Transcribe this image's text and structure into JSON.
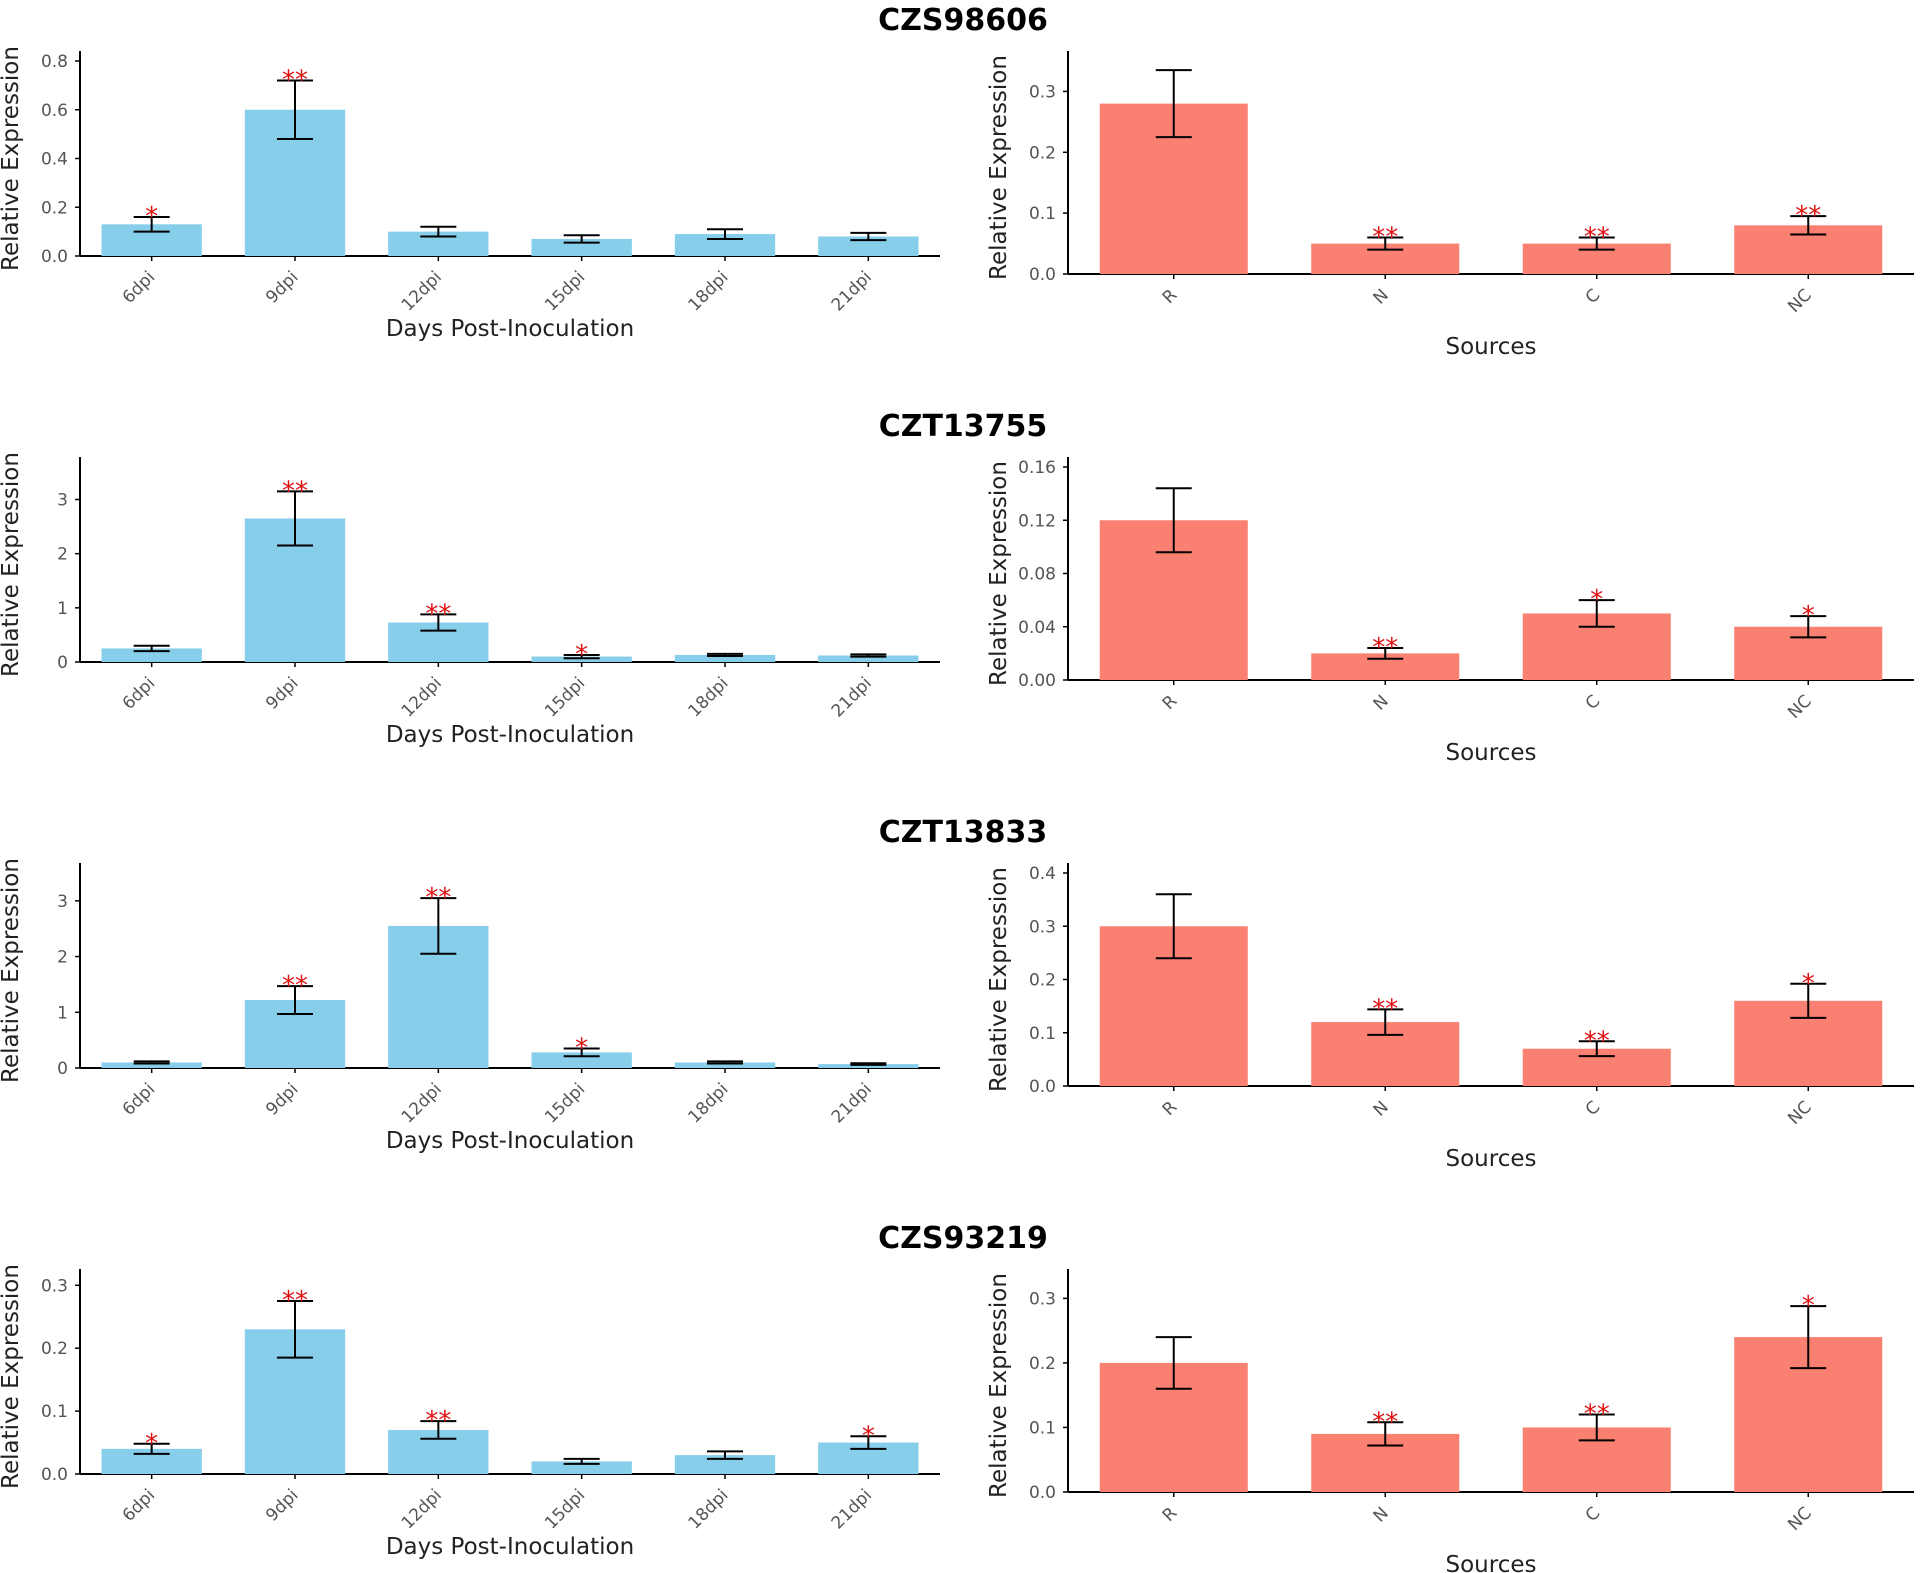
{
  "colors": {
    "time_bar": "#87ceeb",
    "source_bar": "#fa8072",
    "significance": "#e01010",
    "axis": "#000000"
  },
  "chart_data": [
    {
      "gene": "CZS98606",
      "time_course": {
        "type": "bar",
        "categories": [
          "6dpi",
          "9dpi",
          "12dpi",
          "15dpi",
          "18dpi",
          "21dpi"
        ],
        "values": [
          0.13,
          0.6,
          0.1,
          0.07,
          0.09,
          0.08
        ],
        "errors": [
          0.03,
          0.12,
          0.02,
          0.015,
          0.02,
          0.015
        ],
        "significance": [
          "*",
          "**",
          "",
          "",
          "",
          ""
        ],
        "ylim": [
          0,
          0.8
        ],
        "yticks": [
          "0.0",
          "0.2",
          "0.4",
          "0.6",
          "0.8"
        ],
        "xlabel": "Days Post-Inoculation",
        "ylabel": "Relative Expression"
      },
      "sources": {
        "type": "bar",
        "categories": [
          "R",
          "N",
          "C",
          "NC"
        ],
        "values": [
          0.28,
          0.05,
          0.05,
          0.08
        ],
        "errors": [
          0.055,
          0.01,
          0.01,
          0.015
        ],
        "significance": [
          "",
          "**",
          "**",
          "**"
        ],
        "ylim": [
          0,
          0.35
        ],
        "yticks": [
          "0.0",
          "0.1",
          "0.2",
          "0.3"
        ],
        "xlabel": "Sources",
        "ylabel": "Relative Expression"
      }
    },
    {
      "gene": "CZT13755",
      "time_course": {
        "type": "bar",
        "categories": [
          "6dpi",
          "9dpi",
          "12dpi",
          "15dpi",
          "18dpi",
          "21dpi"
        ],
        "values": [
          0.25,
          2.65,
          0.73,
          0.1,
          0.13,
          0.12
        ],
        "errors": [
          0.05,
          0.5,
          0.15,
          0.03,
          0.02,
          0.02
        ],
        "significance": [
          "",
          "**",
          "**",
          "*",
          "",
          ""
        ],
        "ylim": [
          0,
          3.6
        ],
        "yticks": [
          "0",
          "1",
          "2",
          "3"
        ],
        "xlabel": "Days Post-Inoculation",
        "ylabel": "Relative Expression"
      },
      "sources": {
        "type": "bar",
        "categories": [
          "R",
          "N",
          "C",
          "NC"
        ],
        "values": [
          0.12,
          0.02,
          0.05,
          0.04
        ],
        "errors": [
          0.024,
          0.004,
          0.01,
          0.008
        ],
        "significance": [
          "",
          "**",
          "*",
          "*"
        ],
        "ylim": [
          0,
          0.16
        ],
        "yticks": [
          "0.00",
          "0.04",
          "0.08",
          "0.12",
          "0.16"
        ],
        "xlabel": "Sources",
        "ylabel": "Relative Expression"
      }
    },
    {
      "gene": "CZT13833",
      "time_course": {
        "type": "bar",
        "categories": [
          "6dpi",
          "9dpi",
          "12dpi",
          "15dpi",
          "18dpi",
          "21dpi"
        ],
        "values": [
          0.1,
          1.22,
          2.55,
          0.28,
          0.1,
          0.07
        ],
        "errors": [
          0.02,
          0.25,
          0.5,
          0.07,
          0.02,
          0.015
        ],
        "significance": [
          "",
          "**",
          "**",
          "*",
          "",
          ""
        ],
        "ylim": [
          0,
          3.5
        ],
        "yticks": [
          "0",
          "1",
          "2",
          "3"
        ],
        "xlabel": "Days Post-Inoculation",
        "ylabel": "Relative Expression"
      },
      "sources": {
        "type": "bar",
        "categories": [
          "R",
          "N",
          "C",
          "NC"
        ],
        "values": [
          0.3,
          0.12,
          0.07,
          0.16
        ],
        "errors": [
          0.06,
          0.024,
          0.014,
          0.032
        ],
        "significance": [
          "",
          "**",
          "**",
          "*"
        ],
        "ylim": [
          0,
          0.4
        ],
        "yticks": [
          "0.0",
          "0.1",
          "0.2",
          "0.3",
          "0.4"
        ],
        "xlabel": "Sources",
        "ylabel": "Relative Expression"
      }
    },
    {
      "gene": "CZS93219",
      "time_course": {
        "type": "bar",
        "categories": [
          "6dpi",
          "9dpi",
          "12dpi",
          "15dpi",
          "18dpi",
          "21dpi"
        ],
        "values": [
          0.04,
          0.23,
          0.07,
          0.02,
          0.03,
          0.05
        ],
        "errors": [
          0.008,
          0.045,
          0.014,
          0.004,
          0.006,
          0.01
        ],
        "significance": [
          "*",
          "**",
          "**",
          "",
          "",
          "*"
        ],
        "ylim": [
          0,
          0.31
        ],
        "yticks": [
          "0.0",
          "0.1",
          "0.2",
          "0.3"
        ],
        "xlabel": "Days Post-Inoculation",
        "ylabel": "Relative Expression"
      },
      "sources": {
        "type": "bar",
        "categories": [
          "R",
          "N",
          "C",
          "NC"
        ],
        "values": [
          0.2,
          0.09,
          0.1,
          0.24
        ],
        "errors": [
          0.04,
          0.018,
          0.02,
          0.048
        ],
        "significance": [
          "",
          "**",
          "**",
          "*"
        ],
        "ylim": [
          0,
          0.33
        ],
        "yticks": [
          "0.0",
          "0.1",
          "0.2",
          "0.3"
        ],
        "xlabel": "Sources",
        "ylabel": "Relative Expression"
      }
    }
  ]
}
